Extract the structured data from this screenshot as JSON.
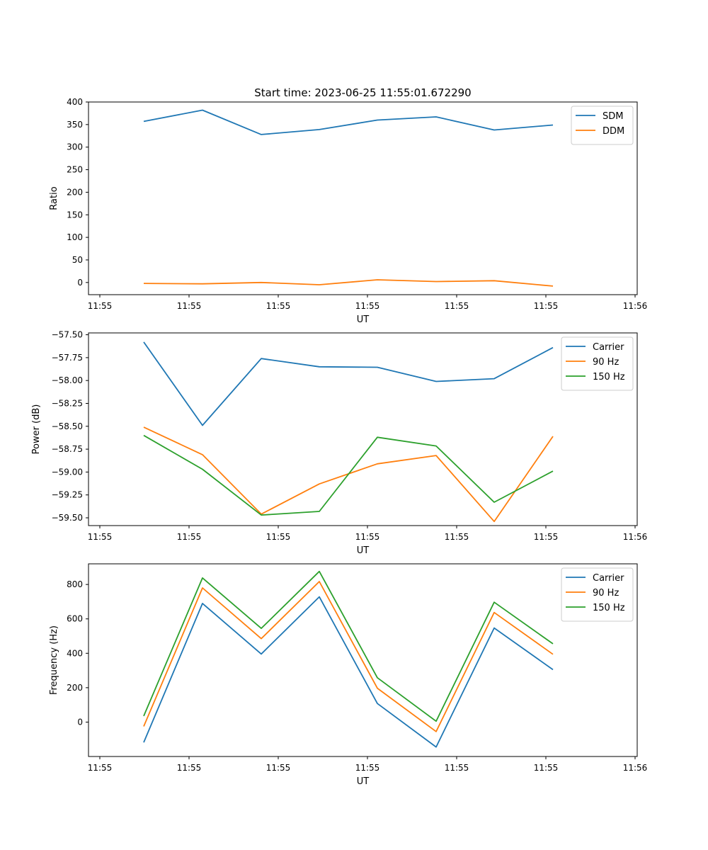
{
  "chart_data": [
    {
      "type": "line",
      "title": "Start time: 2023-06-25 11:55:01.672290",
      "xlabel": "UT",
      "ylabel": "Ratio",
      "xticks": [
        "11:55",
        "11:55",
        "11:55",
        "11:55",
        "11:55",
        "11:55",
        "11:56"
      ],
      "yticks": [
        "0",
        "50",
        "100",
        "150",
        "200",
        "250",
        "300",
        "350",
        "400"
      ],
      "ylim": [
        -27,
        400
      ],
      "grid": false,
      "legend_position": "top-right",
      "series": [
        {
          "name": "SDM",
          "color": "#1f77b4",
          "values": [
            357,
            382,
            328,
            339,
            360,
            367,
            338,
            349
          ]
        },
        {
          "name": "DDM",
          "color": "#ff7f0e",
          "values": [
            -2,
            -3,
            0,
            -5,
            6,
            2,
            4,
            -8
          ]
        }
      ]
    },
    {
      "type": "line",
      "title": "",
      "xlabel": "UT",
      "ylabel": "Power (dB)",
      "xticks": [
        "11:55",
        "11:55",
        "11:55",
        "11:55",
        "11:55",
        "11:55",
        "11:56"
      ],
      "yticks": [
        "−59.50",
        "−59.25",
        "−59.00",
        "−58.75",
        "−58.50",
        "−58.25",
        "−58.00",
        "−57.75",
        "−57.50"
      ],
      "ylim": [
        -59.585,
        -57.48
      ],
      "grid": false,
      "legend_position": "top-right",
      "series": [
        {
          "name": "Carrier",
          "color": "#1f77b4",
          "values": [
            -57.58,
            -58.49,
            -57.76,
            -57.85,
            -57.855,
            -58.01,
            -57.98,
            -57.64
          ]
        },
        {
          "name": "90 Hz",
          "color": "#ff7f0e",
          "values": [
            -58.51,
            -58.81,
            -59.46,
            -59.13,
            -58.91,
            -58.82,
            -59.54,
            -58.61
          ]
        },
        {
          "name": "150 Hz",
          "color": "#2ca02c",
          "values": [
            -58.6,
            -58.97,
            -59.47,
            -59.43,
            -58.62,
            -58.715,
            -59.33,
            -58.99
          ]
        }
      ]
    },
    {
      "type": "line",
      "title": "",
      "xlabel": "UT",
      "ylabel": "Frequency (Hz)",
      "xticks": [
        "11:55",
        "11:55",
        "11:55",
        "11:55",
        "11:55",
        "11:55",
        "11:56"
      ],
      "yticks": [
        "0",
        "200",
        "400",
        "600",
        "800"
      ],
      "ylim": [
        -200,
        920
      ],
      "grid": false,
      "legend_position": "top-right",
      "series": [
        {
          "name": "Carrier",
          "color": "#1f77b4",
          "values": [
            -118,
            690,
            396,
            728,
            108,
            -145,
            547,
            305
          ]
        },
        {
          "name": "90 Hz",
          "color": "#ff7f0e",
          "values": [
            -25,
            780,
            485,
            817,
            197,
            -55,
            637,
            394
          ]
        },
        {
          "name": "150 Hz",
          "color": "#2ca02c",
          "values": [
            35,
            838,
            545,
            876,
            258,
            5,
            697,
            455
          ]
        }
      ]
    }
  ]
}
